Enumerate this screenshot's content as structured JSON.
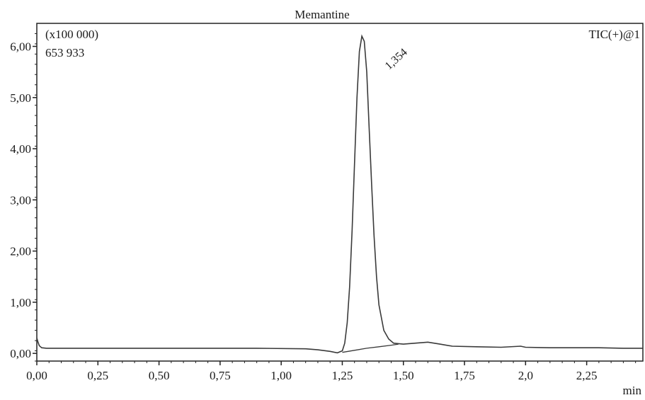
{
  "chart_data": {
    "type": "line",
    "title": "Memantine",
    "xlabel": "min",
    "ylabel": "",
    "scale_note": "(x100 000)",
    "max_intensity": "653 933",
    "trace_label": "TIC(+)@1",
    "xlim": [
      0,
      2.48
    ],
    "ylim": [
      -0.15,
      6.45
    ],
    "x_ticks": [
      {
        "value": 0.0,
        "label": "0,00"
      },
      {
        "value": 0.25,
        "label": "0,25"
      },
      {
        "value": 0.5,
        "label": "0,50"
      },
      {
        "value": 0.75,
        "label": "0,75"
      },
      {
        "value": 1.0,
        "label": "1,00"
      },
      {
        "value": 1.25,
        "label": "1,25"
      },
      {
        "value": 1.5,
        "label": "1,50"
      },
      {
        "value": 1.75,
        "label": "1,75"
      },
      {
        "value": 2.0,
        "label": "2,0"
      },
      {
        "value": 2.25,
        "label": "2,25"
      }
    ],
    "y_ticks": [
      {
        "value": 0,
        "label": "0,00"
      },
      {
        "value": 1,
        "label": "1,00"
      },
      {
        "value": 2,
        "label": "2,00"
      },
      {
        "value": 3,
        "label": "3,00"
      },
      {
        "value": 4,
        "label": "4,00"
      },
      {
        "value": 5,
        "label": "5,00"
      },
      {
        "value": 6,
        "label": "6,00"
      }
    ],
    "peak_annotation": {
      "x": 1.354,
      "y": 6.2,
      "label": "1,354"
    },
    "series": [
      {
        "x": [
          0.0,
          0.005,
          0.01,
          0.02,
          0.04,
          0.1,
          0.3,
          0.6,
          0.9,
          1.1,
          1.15,
          1.2,
          1.23,
          1.25,
          1.26,
          1.27,
          1.28,
          1.29,
          1.3,
          1.31,
          1.32,
          1.33,
          1.34,
          1.35,
          1.36,
          1.37,
          1.38,
          1.39,
          1.4,
          1.42,
          1.44,
          1.46,
          1.48,
          1.5,
          1.55,
          1.6,
          1.65,
          1.7,
          1.8,
          1.9,
          1.98,
          2.0,
          2.1,
          2.2,
          2.3,
          2.4,
          2.48
        ],
        "y": [
          0.3,
          0.22,
          0.15,
          0.11,
          0.1,
          0.1,
          0.1,
          0.1,
          0.1,
          0.09,
          0.07,
          0.04,
          0.01,
          0.05,
          0.2,
          0.6,
          1.3,
          2.4,
          3.7,
          5.0,
          5.9,
          6.2,
          6.1,
          5.5,
          4.4,
          3.3,
          2.3,
          1.5,
          0.95,
          0.45,
          0.28,
          0.2,
          0.19,
          0.18,
          0.2,
          0.22,
          0.18,
          0.14,
          0.13,
          0.12,
          0.14,
          0.12,
          0.11,
          0.11,
          0.11,
          0.1,
          0.1
        ]
      }
    ],
    "baseline": {
      "x": [
        1.25,
        1.3,
        1.35,
        1.4,
        1.45,
        1.48
      ],
      "y": [
        0.02,
        0.06,
        0.1,
        0.13,
        0.16,
        0.18
      ]
    },
    "grid": false,
    "legend": "none",
    "colors": {
      "line": "#3a3a3a",
      "axis": "#222222"
    }
  }
}
